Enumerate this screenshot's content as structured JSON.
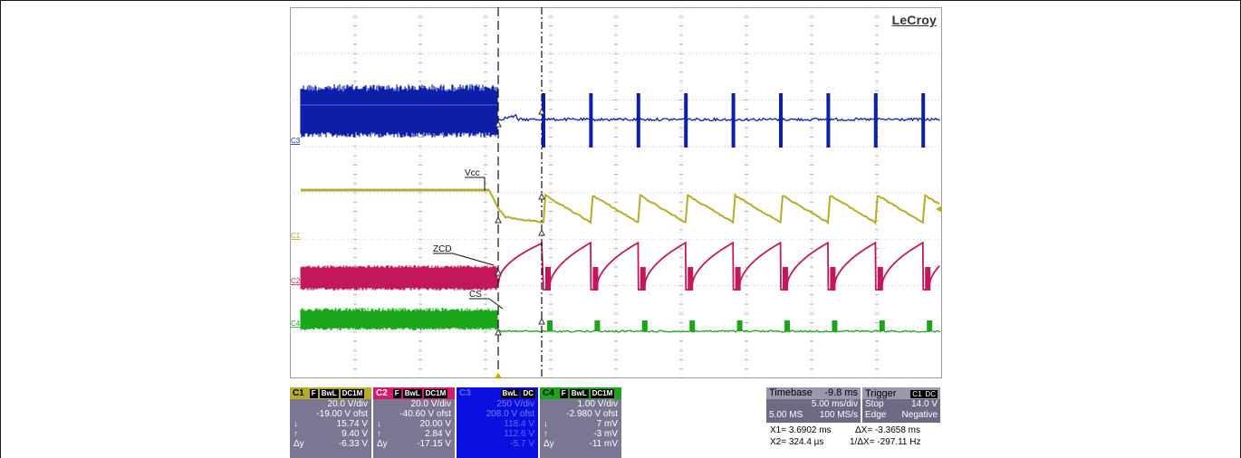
{
  "brand": "LeCroy",
  "colors": {
    "ch1": "#b5ad2a",
    "ch2": "#c2185b",
    "ch3": "#0d1fa8",
    "ch4": "#1aa51a",
    "grid": "#c8c8c8",
    "bg": "#ffffff"
  },
  "chart_data": {
    "type": "line",
    "grid": true,
    "divisions": {
      "x": 10,
      "y": 8
    },
    "time_per_div_ms": 5.0,
    "series": [
      {
        "name": "Vcc",
        "channel": "C1",
        "behavior": "flat then sawtooth ripple after shutdown"
      },
      {
        "name": "ZCD",
        "channel": "C2",
        "behavior": "dense switching then recharge pulses"
      },
      {
        "name": "",
        "channel": "C3",
        "behavior": "dense switching then periodic spikes"
      },
      {
        "name": "CS",
        "channel": "C4",
        "behavior": "dense switching then short bursts"
      }
    ],
    "trace_labels": [
      "Vcc",
      "ZCD",
      "CS"
    ],
    "axis_markers": [
      "C3",
      "C1",
      "C2",
      "C4"
    ],
    "pulse_count_after_event": 9
  },
  "channels": [
    {
      "id": "C1",
      "tags": [
        "F",
        "BwL",
        "DC1M"
      ],
      "vdiv": "20.0 V/div",
      "ofst": "-19.00 V ofst",
      "m1_label": "↓",
      "m1": "15.74 V",
      "m2_label": "↑",
      "m2": "9.40 V",
      "dy_label": "Δy",
      "dy": "-6.33 V"
    },
    {
      "id": "C2",
      "tags": [
        "F",
        "BwL",
        "DC1M"
      ],
      "vdiv": "20.0 V/div",
      "ofst": "-40.60 V ofst",
      "m1_label": "↓",
      "m1": "20.00 V",
      "m2_label": "↑",
      "m2": "2.84 V",
      "dy_label": "Δy",
      "dy": "-17.15 V"
    },
    {
      "id": "C3",
      "tags": [
        "BwL",
        "DC"
      ],
      "vdiv": "250 V/div",
      "ofst": "208.0 V ofst",
      "m1_label": "",
      "m1": "118.4 V",
      "m2_label": "",
      "m2": "112.6 V",
      "dy_label": "",
      "dy": "-5.7 V"
    },
    {
      "id": "C4",
      "tags": [
        "F",
        "BwL",
        "DC1M"
      ],
      "vdiv": "1.00 V/div",
      "ofst": "-2.980 V ofst",
      "m1_label": "↓",
      "m1": "7 mV",
      "m2_label": "↑",
      "m2": "-3 mV",
      "dy_label": "Δy",
      "dy": "-11 mV"
    }
  ],
  "timebase": {
    "label": "Timebase",
    "delay": "-9.8 ms",
    "rate": "5.00 ms/div",
    "samples": "5.00 MS",
    "sr": "100 MS/s"
  },
  "trigger": {
    "label": "Trigger",
    "src": "C1",
    "coupling": "DC",
    "mode": "Stop",
    "level": "14.0 V",
    "type": "Edge",
    "slope": "Negative"
  },
  "cursors": {
    "x1": "X1= 3.6902 ms",
    "dx": "ΔX= -3.3658 ms",
    "x2": "X2= 324.4 µs",
    "inv": "1/ΔX= -297.11 Hz"
  }
}
